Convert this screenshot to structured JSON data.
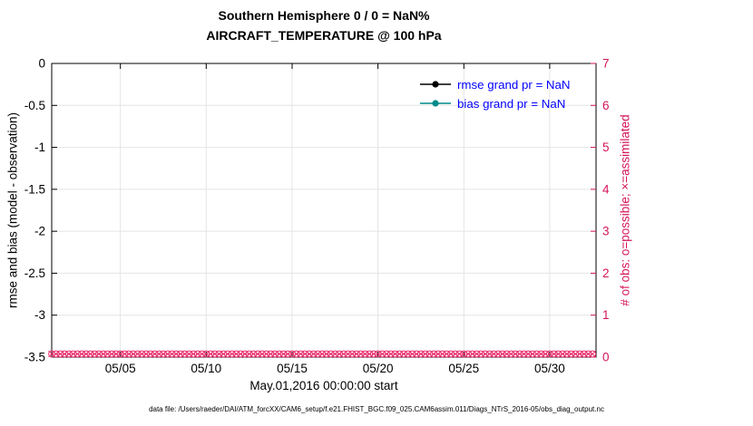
{
  "page": {
    "caption": "data file: /Users/raeder/DAI/ATM_forcXX/CAM6_setup/f.e21.FHIST_BGC.f09_025.CAM6assim.011/Diags_NTrS_2016-05/obs_diag_output.nc"
  },
  "chart_data": {
    "type": "line",
    "title": "Southern Hemisphere 0 / 0 = NaN%",
    "subtitle": "AIRCRAFT_TEMPERATURE @ 100 hPa",
    "xlabel": "May.01,2016 00:00:00 start",
    "grid": true,
    "left_axis": {
      "label": "rmse and bias (model - observation)",
      "lim": [
        -3.5,
        0
      ],
      "ticks": [
        0,
        -0.5,
        -1,
        -1.5,
        -2,
        -2.5,
        -3,
        -3.5
      ],
      "tick_labels": [
        "0",
        "-0.5",
        "-1",
        "-1.5",
        "-2",
        "-2.5",
        "-3",
        "-3.5"
      ],
      "color": "#000000"
    },
    "right_axis": {
      "label": "# of obs: o=possible; ×=assimilated",
      "lim": [
        0,
        7
      ],
      "ticks": [
        0,
        1,
        2,
        3,
        4,
        5,
        6,
        7
      ],
      "color": "#d4145a"
    },
    "x_axis": {
      "lim_days": [
        1,
        32.7
      ],
      "ticks": [
        {
          "day": 5,
          "label": "05/05"
        },
        {
          "day": 10,
          "label": "05/10"
        },
        {
          "day": 15,
          "label": "05/15"
        },
        {
          "day": 20,
          "label": "05/20"
        },
        {
          "day": 25,
          "label": "05/25"
        },
        {
          "day": 30,
          "label": "05/30"
        }
      ]
    },
    "series": [
      {
        "name": "rmse grand pr = NaN",
        "color": "#000000",
        "values": "NaN (no line plotted)"
      },
      {
        "name": "bias grand pr = NaN",
        "color": "#008b8b",
        "values": "NaN (no line plotted)"
      }
    ],
    "legend": {
      "position": "top-right",
      "text_color": "#0000ff",
      "entries": [
        {
          "label": "rmse grand pr = NaN",
          "color": "#000000"
        },
        {
          "label": "bias grand pr = NaN",
          "color": "#008b8b"
        }
      ]
    },
    "obs_markers": {
      "axis": "right",
      "value": 0,
      "possible_count": 0,
      "assimilated_count": 0,
      "start_day": 1,
      "end_day": 32.6,
      "per_day": 4,
      "possible_marker": "o",
      "assimilated_marker": "×",
      "color": "#e8326e"
    }
  }
}
